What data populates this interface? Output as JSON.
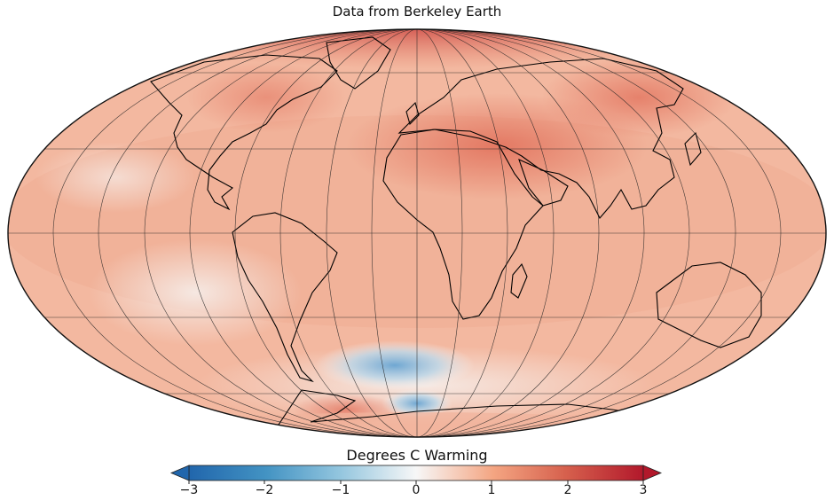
{
  "title": "Data from Berkeley Earth",
  "colorbar": {
    "label": "Degrees C Warming",
    "ticks": [
      "−3",
      "−2",
      "−1",
      "0",
      "1",
      "2",
      "3"
    ],
    "min": -3,
    "max": 3,
    "colormap": [
      "#2166ac",
      "#4393c3",
      "#92c5de",
      "#f7f7f7",
      "#f4a582",
      "#d6604d",
      "#b2182b"
    ]
  },
  "map": {
    "projection": "mollweide",
    "graticule_meridian_step_deg": 20,
    "graticule_parallel_step_deg": 30
  }
}
